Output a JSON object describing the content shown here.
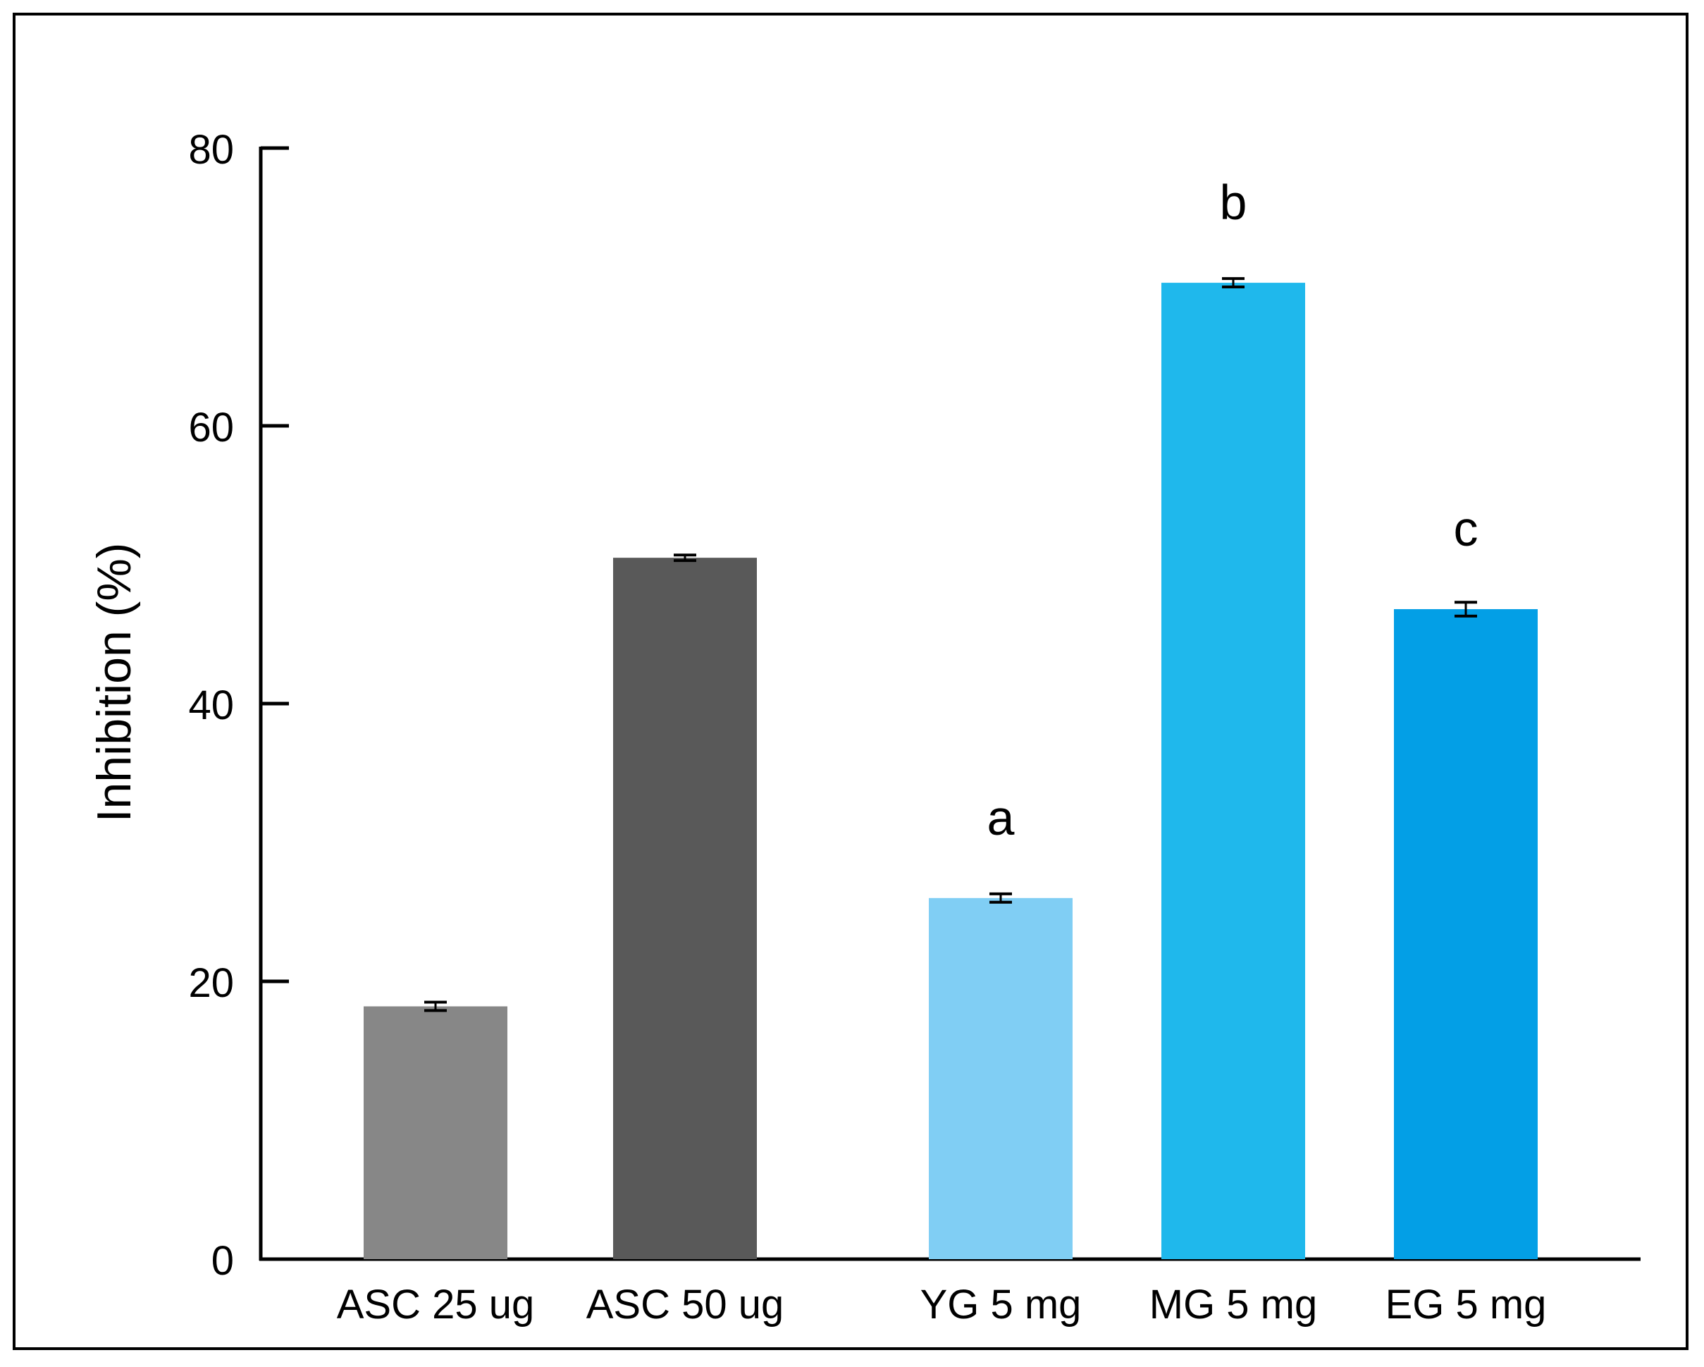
{
  "chart_data": {
    "type": "bar",
    "title": "",
    "xlabel": "",
    "ylabel": "Inhibition (%)",
    "ylim": [
      0,
      80
    ],
    "yticks": [
      "0",
      "20",
      "40",
      "60",
      "80"
    ],
    "categories": [
      "ASC 25 ug",
      "ASC 50 ug",
      "YG 5 mg",
      "MG 5 mg",
      "EG 5 mg"
    ],
    "values": [
      18.2,
      50.5,
      26.0,
      70.3,
      46.8
    ],
    "errors": [
      0.3,
      0.2,
      0.3,
      0.3,
      0.5
    ],
    "significance": [
      "",
      "",
      "a",
      "b",
      "c"
    ],
    "colors": [
      "#878787",
      "#595959",
      "#80cef4",
      "#1fb8ec",
      "#039fe6"
    ],
    "grid": false
  }
}
